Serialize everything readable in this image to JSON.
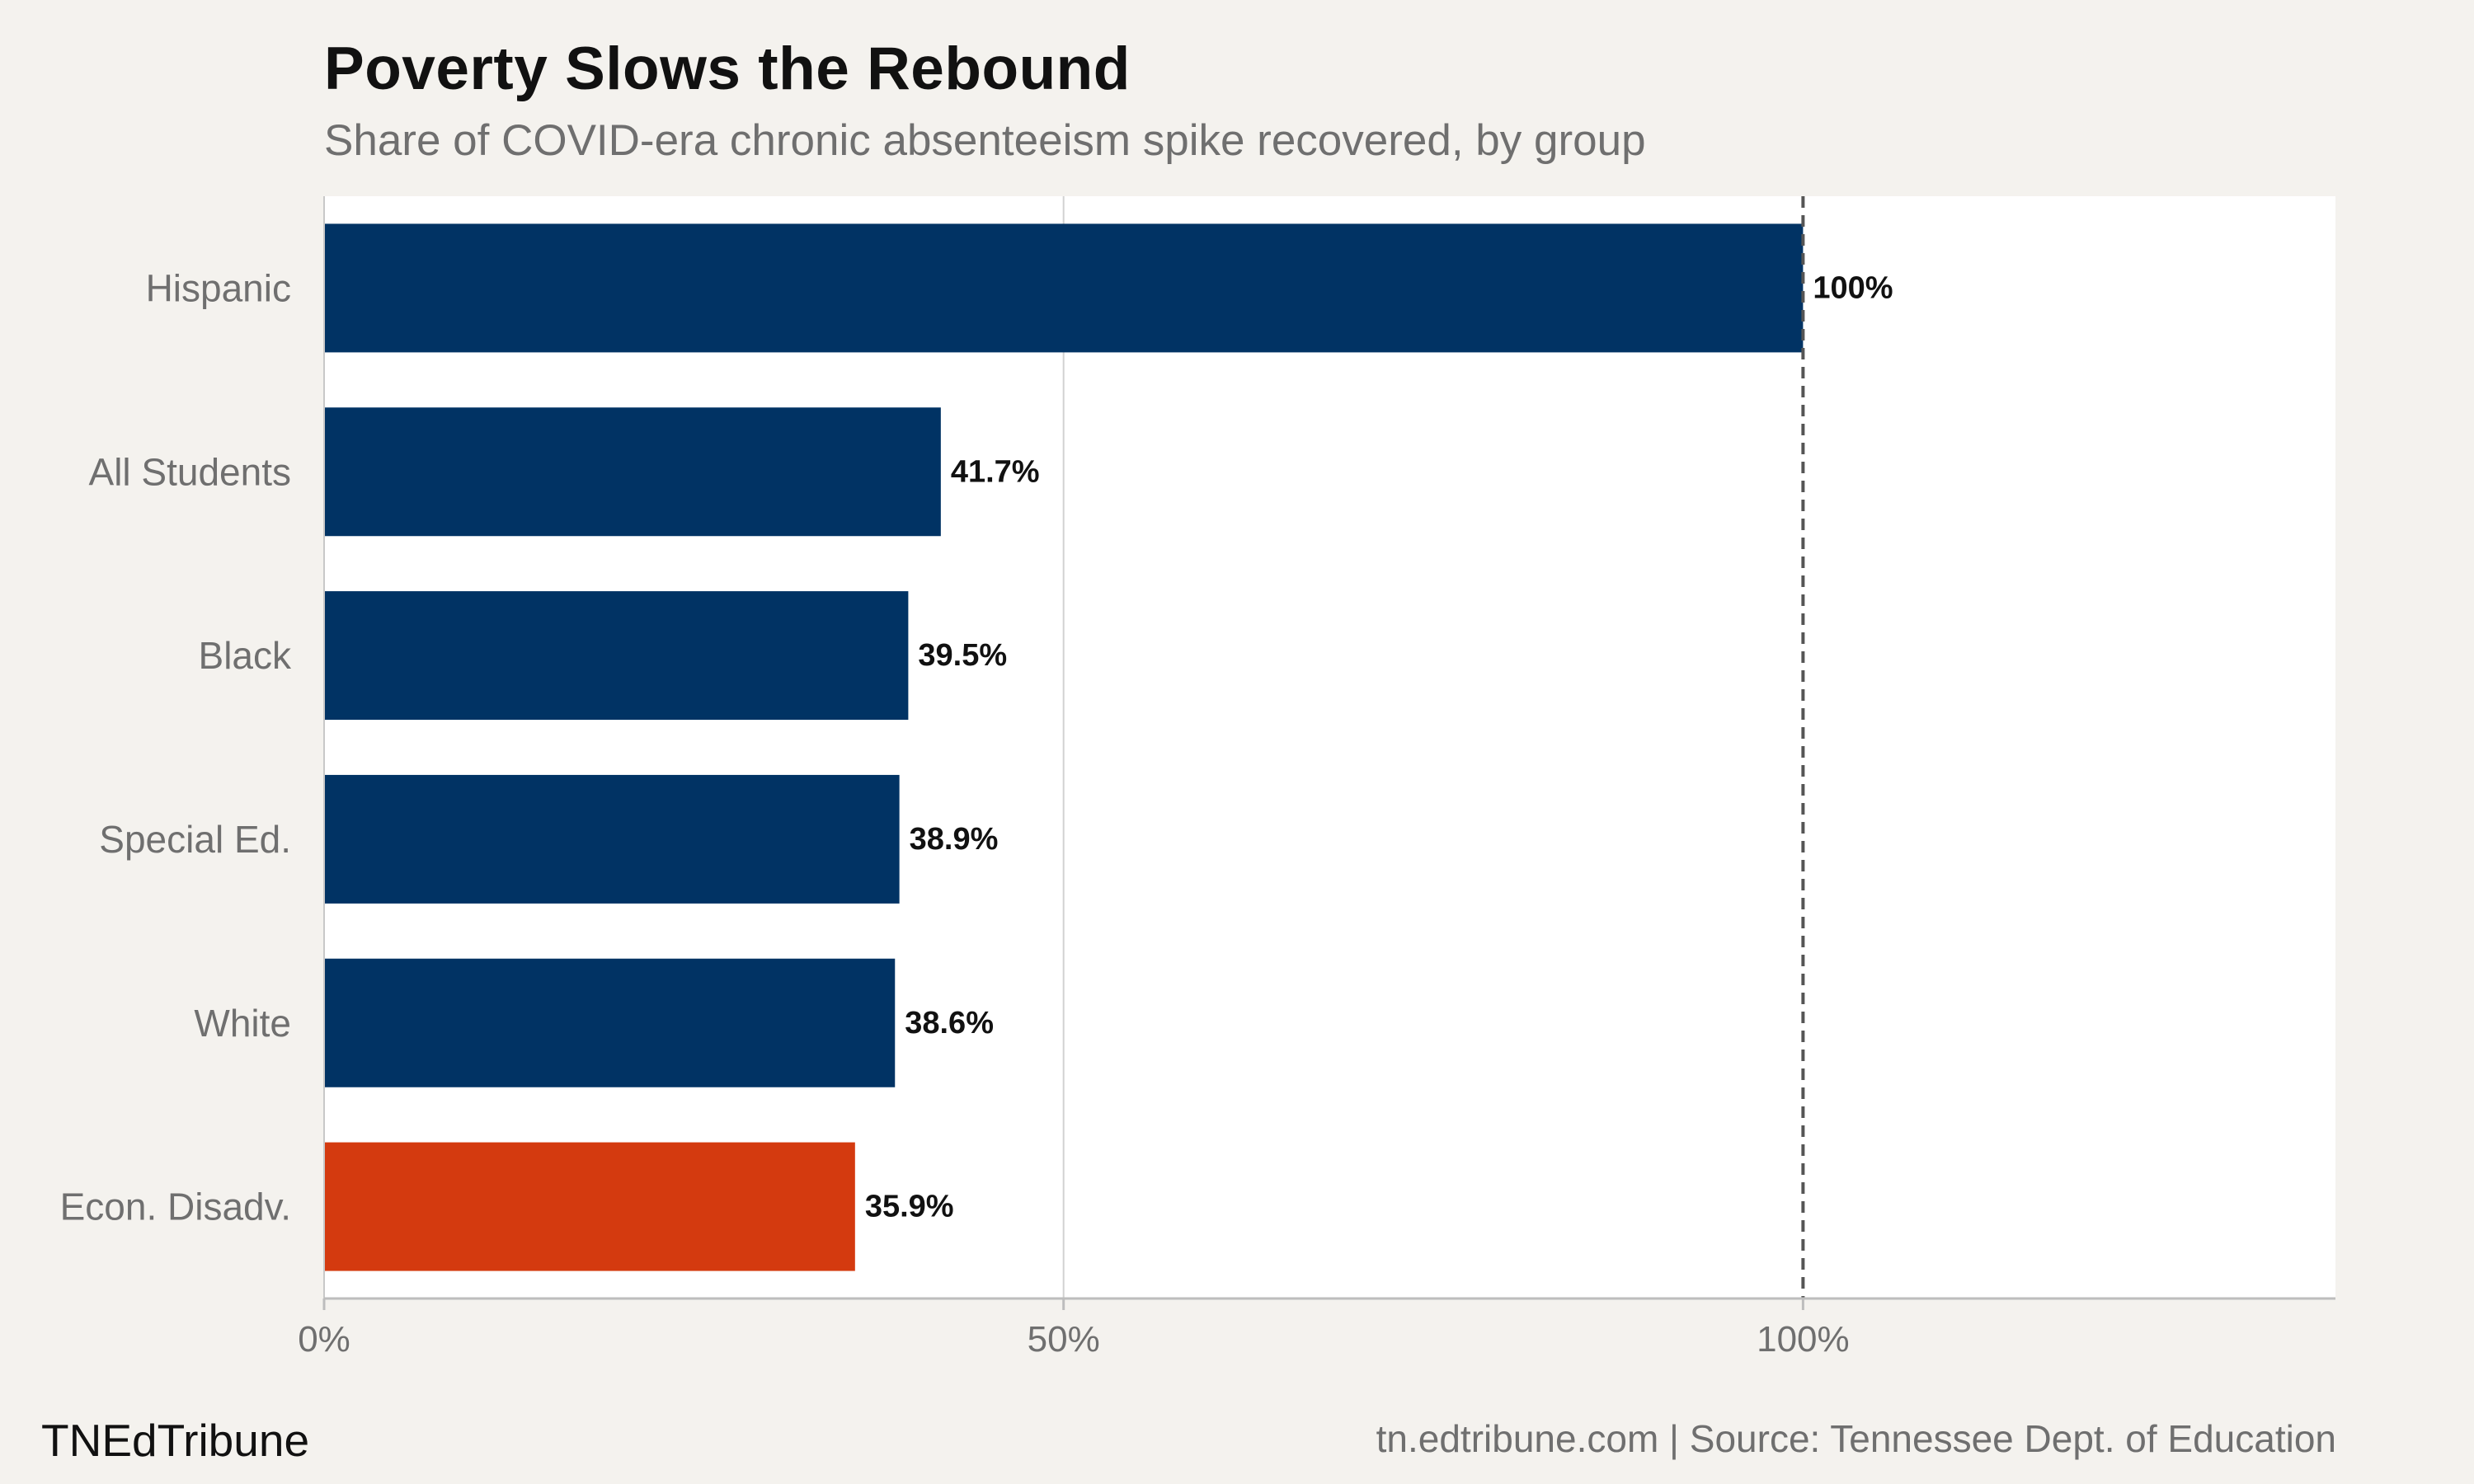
{
  "header": {
    "title": "Poverty Slows the Rebound",
    "subtitle": "Share of COVID-era chronic absenteeism spike recovered, by group"
  },
  "footer": {
    "brand": "TNEdTribune",
    "source": "tn.edtribune.com | Source: Tennessee Dept. of Education"
  },
  "chart_data": {
    "type": "bar",
    "orientation": "horizontal",
    "title": "Poverty Slows the Rebound",
    "subtitle": "Share of COVID-era chronic absenteeism spike recovered, by group",
    "categories": [
      "Hispanic",
      "All Students",
      "Black",
      "Special Ed.",
      "White",
      "Econ. Disadv."
    ],
    "values": [
      100,
      41.7,
      39.5,
      38.9,
      38.6,
      35.9
    ],
    "data_labels": [
      "100%",
      "41.7%",
      "39.5%",
      "38.9%",
      "38.6%",
      "35.9%"
    ],
    "highlight": "Econ. Disadv.",
    "xlim": [
      0,
      136
    ],
    "x_ticks": [
      0,
      50,
      100
    ],
    "x_tick_labels": [
      "0%",
      "50%",
      "100%"
    ],
    "reference_line": 100,
    "grid": "vertical",
    "colors": {
      "bar": "#013364",
      "highlight": "#d43a0f",
      "panel": "#ffffff",
      "background": "#f4f2ee",
      "grid": "#d2d2d2",
      "reference": "#555555"
    }
  }
}
